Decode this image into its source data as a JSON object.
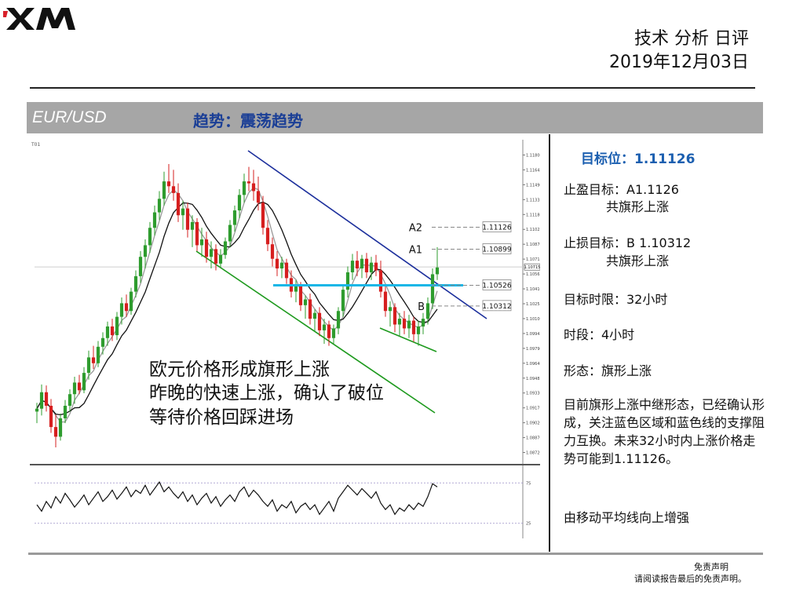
{
  "brand": {
    "logo_text": "XM"
  },
  "header": {
    "title": "技术 分析 日评",
    "date": "2019年12月03日"
  },
  "banner": {
    "pair": "EUR/USD",
    "trend": "趋势：震荡趋势"
  },
  "colors": {
    "banner_bg": "#a6a6a6",
    "trend_text": "#1b3f96",
    "target_text": "#1b5fb0",
    "bull_candle": "#2e9c2e",
    "bear_candle": "#d61f1f",
    "channel_upper": "#1c2f9c",
    "channel_lower": "#1e9a1e",
    "support_zone": "#18b6e6"
  },
  "chart_data": {
    "type": "candlestick",
    "symbol_label": "T01",
    "y_ticks": [
      "1.11800",
      "1.11645",
      "1.11490",
      "1.11335",
      "1.11180",
      "1.11025",
      "1.10870",
      "1.10715",
      "1.10565",
      "1.10410",
      "1.10255",
      "1.10100",
      "1.09945",
      "1.09790",
      "1.09640",
      "1.09485",
      "1.09330",
      "1.09175",
      "1.09020",
      "1.08870",
      "1.08720"
    ],
    "ylim": [
      1.0872,
      1.1195
    ],
    "current_price": "1.10715",
    "levels": [
      {
        "label": "A2",
        "value": 1.11126,
        "text": "1.11126"
      },
      {
        "label": "A1",
        "value": 1.10899,
        "text": "1.10899"
      },
      {
        "label": "",
        "value": 1.10526,
        "text": "1.10526"
      },
      {
        "label": "B",
        "value": 1.10312,
        "text": "1.10312"
      }
    ],
    "candles": [
      [
        1.0922,
        1.0931,
        1.091,
        1.0925
      ],
      [
        1.0925,
        1.095,
        1.0918,
        1.0942
      ],
      [
        1.0942,
        1.0949,
        1.0922,
        1.0928
      ],
      [
        1.0928,
        1.0935,
        1.09,
        1.0906
      ],
      [
        1.0906,
        1.0919,
        1.0885,
        1.0896
      ],
      [
        1.0896,
        1.092,
        1.0892,
        1.0915
      ],
      [
        1.0915,
        1.0934,
        1.091,
        1.0928
      ],
      [
        1.0928,
        1.0945,
        1.0922,
        1.094
      ],
      [
        1.094,
        1.0958,
        1.093,
        1.0952
      ],
      [
        1.0952,
        1.096,
        1.094,
        1.0944
      ],
      [
        1.0944,
        1.0968,
        1.0941,
        1.0962
      ],
      [
        1.0962,
        1.0985,
        1.0955,
        1.0978
      ],
      [
        1.0978,
        1.099,
        1.0966,
        1.0972
      ],
      [
        1.0972,
        1.0995,
        1.0968,
        1.0989
      ],
      [
        1.0989,
        1.1004,
        1.0981,
        1.0998
      ],
      [
        1.0998,
        1.1015,
        1.099,
        1.101
      ],
      [
        1.101,
        1.1018,
        1.0995,
        1.1001
      ],
      [
        1.1001,
        1.1025,
        1.0996,
        1.102
      ],
      [
        1.102,
        1.104,
        1.1012,
        1.1034
      ],
      [
        1.1034,
        1.1043,
        1.102,
        1.1026
      ],
      [
        1.1026,
        1.105,
        1.1022,
        1.1046
      ],
      [
        1.1046,
        1.1068,
        1.104,
        1.1062
      ],
      [
        1.1062,
        1.1088,
        1.1055,
        1.1082
      ],
      [
        1.1082,
        1.11,
        1.107,
        1.1094
      ],
      [
        1.1094,
        1.1118,
        1.1086,
        1.1112
      ],
      [
        1.1112,
        1.1135,
        1.1104,
        1.1128
      ],
      [
        1.1128,
        1.115,
        1.112,
        1.1142
      ],
      [
        1.1142,
        1.117,
        1.1135,
        1.116
      ],
      [
        1.116,
        1.1178,
        1.1148,
        1.1155
      ],
      [
        1.1155,
        1.1172,
        1.114,
        1.1148
      ],
      [
        1.1148,
        1.1158,
        1.1118,
        1.1125
      ],
      [
        1.1125,
        1.114,
        1.111,
        1.1132
      ],
      [
        1.1132,
        1.1138,
        1.1102,
        1.111
      ],
      [
        1.111,
        1.1125,
        1.1092,
        1.1118
      ],
      [
        1.1118,
        1.1122,
        1.1088,
        1.1094
      ],
      [
        1.1094,
        1.1112,
        1.1082,
        1.11
      ],
      [
        1.11,
        1.1108,
        1.1076,
        1.1082
      ],
      [
        1.1082,
        1.1098,
        1.107,
        1.109
      ],
      [
        1.109,
        1.1095,
        1.1068,
        1.1075
      ],
      [
        1.1075,
        1.109,
        1.107,
        1.1084
      ],
      [
        1.1084,
        1.1102,
        1.108,
        1.1098
      ],
      [
        1.1098,
        1.112,
        1.1092,
        1.1115
      ],
      [
        1.1115,
        1.1135,
        1.1108,
        1.113
      ],
      [
        1.113,
        1.1152,
        1.1122,
        1.1146
      ],
      [
        1.1146,
        1.1168,
        1.1138,
        1.116
      ],
      [
        1.116,
        1.1175,
        1.115,
        1.1158
      ],
      [
        1.1158,
        1.1172,
        1.114,
        1.115
      ],
      [
        1.115,
        1.1165,
        1.113,
        1.1138
      ],
      [
        1.1138,
        1.1145,
        1.1105,
        1.1112
      ],
      [
        1.1112,
        1.112,
        1.1088,
        1.1095
      ],
      [
        1.1095,
        1.1102,
        1.1072,
        1.108
      ],
      [
        1.108,
        1.1088,
        1.1062,
        1.107
      ],
      [
        1.107,
        1.1082,
        1.106,
        1.1076
      ],
      [
        1.1076,
        1.108,
        1.1054,
        1.106
      ],
      [
        1.106,
        1.1068,
        1.104,
        1.1046
      ],
      [
        1.1046,
        1.1058,
        1.1035,
        1.1052
      ],
      [
        1.1052,
        1.1056,
        1.1026,
        1.1032
      ],
      [
        1.1032,
        1.1042,
        1.1018,
        1.1038
      ],
      [
        1.1038,
        1.1044,
        1.1012,
        1.1018
      ],
      [
        1.1018,
        1.1028,
        1.1005,
        1.1024
      ],
      [
        1.1024,
        1.103,
        1.1,
        1.1006
      ],
      [
        1.1006,
        1.1018,
        1.0992,
        1.1012
      ],
      [
        1.1012,
        1.1016,
        1.099,
        1.0998
      ],
      [
        1.0998,
        1.1012,
        1.0991,
        1.1008
      ],
      [
        1.1008,
        1.103,
        1.1002,
        1.1026
      ],
      [
        1.1026,
        1.1052,
        1.102,
        1.1048
      ],
      [
        1.1048,
        1.1072,
        1.104,
        1.1066
      ],
      [
        1.1066,
        1.1085,
        1.1058,
        1.1078
      ],
      [
        1.1078,
        1.1088,
        1.1062,
        1.107
      ],
      [
        1.107,
        1.1084,
        1.106,
        1.108
      ],
      [
        1.108,
        1.1086,
        1.106,
        1.1066
      ],
      [
        1.1066,
        1.1082,
        1.1058,
        1.1076
      ],
      [
        1.1076,
        1.1084,
        1.1062,
        1.1068
      ],
      [
        1.1068,
        1.1078,
        1.104,
        1.1046
      ],
      [
        1.1046,
        1.1052,
        1.102,
        1.1026
      ],
      [
        1.1026,
        1.1036,
        1.101,
        1.103
      ],
      [
        1.103,
        1.1034,
        1.1004,
        1.1012
      ],
      [
        1.1012,
        1.1024,
        1.1,
        1.1018
      ],
      [
        1.1018,
        1.1026,
        1.1002,
        1.1008
      ],
      [
        1.1008,
        1.1022,
        1.0998,
        1.1016
      ],
      [
        1.1016,
        1.102,
        1.0994,
        1.1002
      ],
      [
        1.1002,
        1.1016,
        1.099,
        1.101
      ],
      [
        1.101,
        1.1024,
        1.1002,
        1.1018
      ],
      [
        1.1018,
        1.104,
        1.1012,
        1.1034
      ],
      [
        1.1034,
        1.107,
        1.1028,
        1.1064
      ],
      [
        1.1064,
        1.1092,
        1.1058,
        1.1071
      ]
    ],
    "oscillator": {
      "levels": [
        "75",
        "25"
      ],
      "values": [
        48,
        40,
        52,
        44,
        58,
        50,
        62,
        54,
        45,
        52,
        60,
        48,
        56,
        64,
        52,
        58,
        66,
        55,
        62,
        70,
        58,
        66,
        62,
        72,
        60,
        68,
        76,
        64,
        70,
        62,
        56,
        64,
        52,
        60,
        48,
        56,
        62,
        50,
        58,
        46,
        54,
        60,
        52,
        64,
        70,
        58,
        66,
        60,
        52,
        46,
        54,
        40,
        48,
        44,
        52,
        38,
        46,
        50,
        42,
        48,
        36,
        44,
        52,
        40,
        56,
        64,
        72,
        66,
        60,
        68,
        62,
        56,
        64,
        50,
        42,
        48,
        36,
        44,
        40,
        48,
        42,
        50,
        46,
        58,
        74,
        70
      ]
    }
  },
  "annotation": {
    "line1": "欧元价格形成旗形上涨",
    "line2": "昨晚的快速上涨，确认了破位",
    "line3": "等待价格回踩进场"
  },
  "side": {
    "target": "目标位：1.11126",
    "take_profit": "止盈目标：A1.1126",
    "take_profit_sub": "共旗形上涨",
    "stop_target": "止损目标：B 1.10312",
    "stop_target_sub": "共旗形上涨",
    "time_target": "目标时限：32小时",
    "timeframe": "时段：4小时",
    "pattern": "形态：旗形上涨",
    "description": "目前旗形上涨中继形态，已经确认形成，关注蓝色区域和蓝色线的支撑阻力互换。未来32小时内上涨价格走势可能到1.11126。",
    "note": "由移动平均线向上增强"
  },
  "footer": {
    "disclaimer_title": "免责声明",
    "disclaimer_text": "请阅读报告最后的免责声明。"
  }
}
